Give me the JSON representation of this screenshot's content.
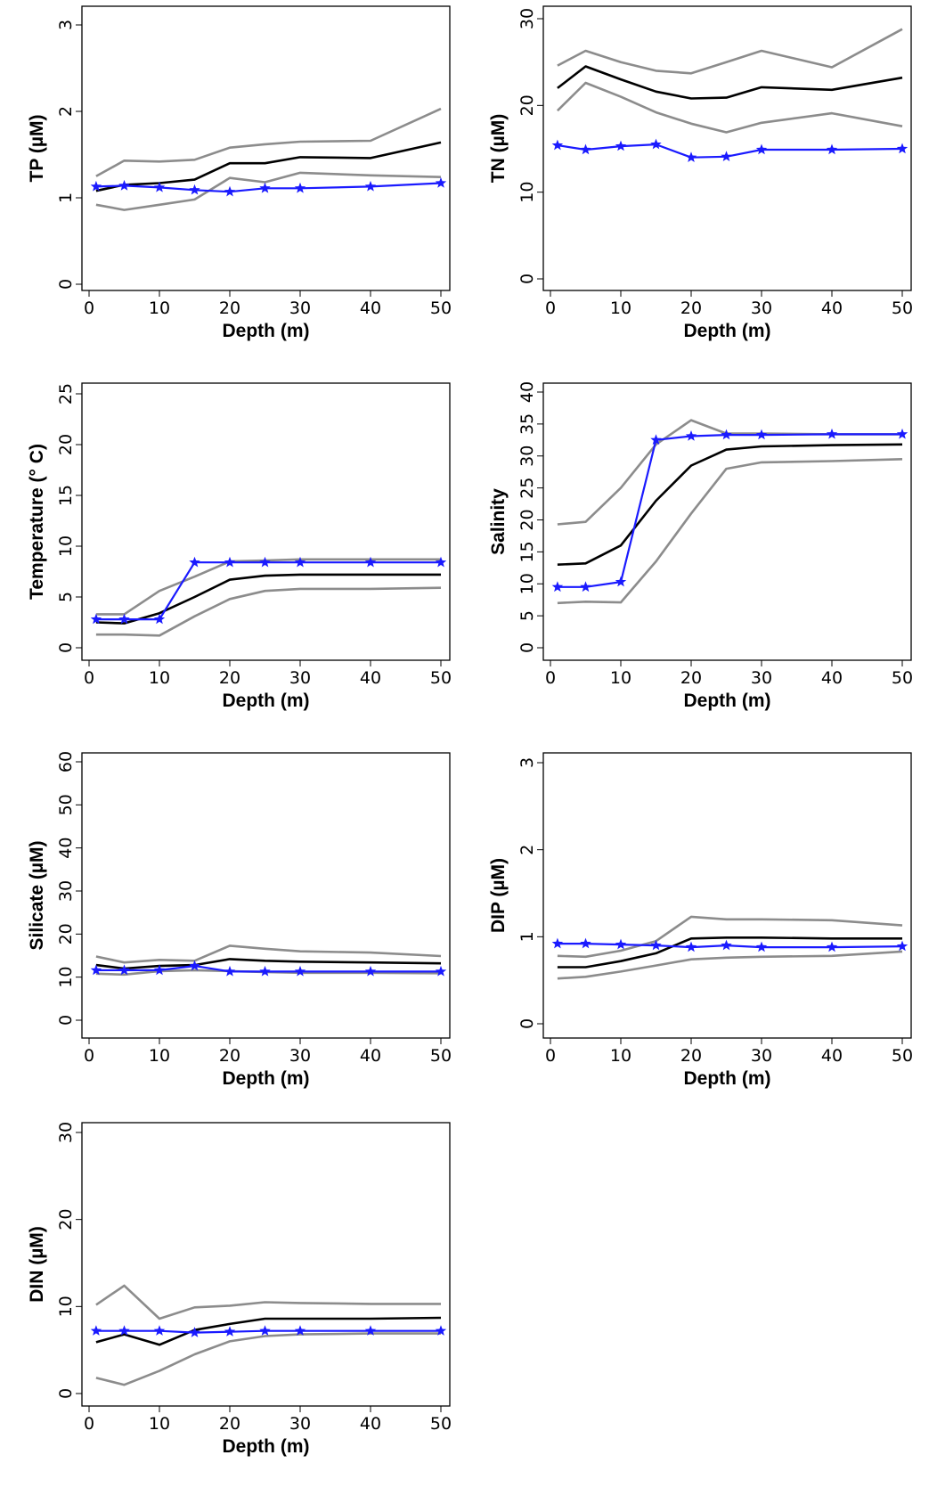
{
  "colors": {
    "mean": "#000000",
    "bounds": "#8c8c8c",
    "observed": "#1a1aff"
  },
  "chart_data": [
    {
      "type": "line",
      "xlabel": "Depth (m)",
      "ylabel": "TP (µM)",
      "xlim": [
        0,
        50
      ],
      "ylim": [
        0,
        3
      ],
      "xticks": [
        0,
        10,
        20,
        30,
        40,
        50
      ],
      "yticks": [
        0,
        1,
        2,
        3
      ],
      "x": [
        1,
        5,
        10,
        15,
        20,
        25,
        30,
        40,
        50
      ],
      "series": [
        {
          "role": "upper",
          "values": [
            1.25,
            1.43,
            1.42,
            1.44,
            1.58,
            1.62,
            1.65,
            1.66,
            2.03
          ]
        },
        {
          "role": "mean",
          "values": [
            1.08,
            1.15,
            1.17,
            1.21,
            1.4,
            1.4,
            1.47,
            1.46,
            1.64
          ]
        },
        {
          "role": "lower",
          "values": [
            0.92,
            0.86,
            0.92,
            0.98,
            1.23,
            1.18,
            1.29,
            1.26,
            1.24
          ]
        },
        {
          "role": "observed",
          "values": [
            1.13,
            1.14,
            1.12,
            1.09,
            1.07,
            1.11,
            1.11,
            1.13,
            1.17
          ]
        }
      ]
    },
    {
      "type": "line",
      "xlabel": "Depth (m)",
      "ylabel": "TN (µM)",
      "xlim": [
        0,
        50
      ],
      "ylim": [
        0,
        30
      ],
      "xticks": [
        0,
        10,
        20,
        30,
        40,
        50
      ],
      "yticks": [
        0,
        10,
        20,
        30
      ],
      "x": [
        1,
        5,
        10,
        15,
        20,
        25,
        30,
        40,
        50
      ],
      "series": [
        {
          "role": "upper",
          "values": [
            24.6,
            26.3,
            25.0,
            24.0,
            23.7,
            25.0,
            26.3,
            24.4,
            28.8
          ]
        },
        {
          "role": "mean",
          "values": [
            22.0,
            24.5,
            23.0,
            21.6,
            20.8,
            20.9,
            22.1,
            21.8,
            23.2
          ]
        },
        {
          "role": "lower",
          "values": [
            19.4,
            22.6,
            21.0,
            19.2,
            17.9,
            16.9,
            18.0,
            19.1,
            17.6
          ]
        },
        {
          "role": "observed",
          "values": [
            15.4,
            14.9,
            15.3,
            15.5,
            14.0,
            14.1,
            14.9,
            14.9,
            15.0
          ]
        }
      ]
    },
    {
      "type": "line",
      "xlabel": "Depth (m)",
      "ylabel": "Temperature (° C)",
      "xlim": [
        0,
        50
      ],
      "ylim": [
        0,
        25
      ],
      "xticks": [
        0,
        10,
        20,
        30,
        40,
        50
      ],
      "yticks": [
        0,
        5,
        10,
        15,
        20,
        25
      ],
      "x": [
        1,
        5,
        10,
        15,
        20,
        25,
        30,
        40,
        50
      ],
      "series": [
        {
          "role": "upper",
          "values": [
            3.3,
            3.3,
            5.6,
            7.0,
            8.5,
            8.6,
            8.7,
            8.7,
            8.7
          ]
        },
        {
          "role": "mean",
          "values": [
            2.5,
            2.4,
            3.4,
            5.0,
            6.7,
            7.1,
            7.2,
            7.2,
            7.2
          ]
        },
        {
          "role": "lower",
          "values": [
            1.3,
            1.3,
            1.2,
            3.1,
            4.8,
            5.6,
            5.8,
            5.8,
            5.9
          ]
        },
        {
          "role": "observed",
          "values": [
            2.8,
            2.8,
            2.8,
            8.4,
            8.4,
            8.4,
            8.4,
            8.4,
            8.4
          ]
        }
      ]
    },
    {
      "type": "line",
      "xlabel": "Depth (m)",
      "ylabel": "Salinity",
      "xlim": [
        0,
        50
      ],
      "ylim": [
        0,
        40
      ],
      "xticks": [
        0,
        10,
        20,
        30,
        40,
        50
      ],
      "yticks": [
        0,
        5,
        10,
        15,
        20,
        25,
        30,
        35,
        40
      ],
      "x": [
        1,
        5,
        10,
        15,
        20,
        25,
        30,
        40,
        50
      ],
      "series": [
        {
          "role": "upper",
          "values": [
            19.3,
            19.7,
            25.0,
            31.8,
            35.6,
            33.5,
            33.5,
            33.4,
            33.4
          ]
        },
        {
          "role": "mean",
          "values": [
            13.0,
            13.2,
            16.0,
            23.0,
            28.5,
            31.0,
            31.5,
            31.7,
            31.8
          ]
        },
        {
          "role": "lower",
          "values": [
            7.0,
            7.2,
            7.1,
            13.5,
            21.0,
            28.0,
            29.0,
            29.2,
            29.5
          ]
        },
        {
          "role": "observed",
          "values": [
            9.5,
            9.5,
            10.3,
            32.5,
            33.1,
            33.3,
            33.3,
            33.4,
            33.4
          ]
        }
      ]
    },
    {
      "type": "line",
      "xlabel": "Depth (m)",
      "ylabel": "Silicate (µM)",
      "xlim": [
        0,
        50
      ],
      "ylim": [
        0,
        60
      ],
      "xticks": [
        0,
        10,
        20,
        30,
        40,
        50
      ],
      "yticks": [
        0,
        10,
        20,
        30,
        40,
        50,
        60
      ],
      "x": [
        1,
        5,
        10,
        15,
        20,
        25,
        30,
        40,
        50
      ],
      "series": [
        {
          "role": "upper",
          "values": [
            14.8,
            13.4,
            14.0,
            13.8,
            17.3,
            16.6,
            16.0,
            15.7,
            14.9
          ]
        },
        {
          "role": "mean",
          "values": [
            12.8,
            12.0,
            12.6,
            12.8,
            14.2,
            13.8,
            13.6,
            13.4,
            13.2
          ]
        },
        {
          "role": "lower",
          "values": [
            10.8,
            10.6,
            11.4,
            11.6,
            11.4,
            11.2,
            11.0,
            11.0,
            10.9
          ]
        },
        {
          "role": "observed",
          "values": [
            11.6,
            11.6,
            11.6,
            12.6,
            11.3,
            11.3,
            11.3,
            11.3,
            11.3
          ]
        }
      ]
    },
    {
      "type": "line",
      "xlabel": "Depth (m)",
      "ylabel": "DIP (µM)",
      "xlim": [
        0,
        50
      ],
      "ylim": [
        0,
        3
      ],
      "xticks": [
        0,
        10,
        20,
        30,
        40,
        50
      ],
      "yticks": [
        0,
        1,
        2,
        3
      ],
      "x": [
        1,
        5,
        10,
        15,
        20,
        25,
        30,
        40,
        50
      ],
      "series": [
        {
          "role": "upper",
          "values": [
            0.78,
            0.77,
            0.84,
            0.95,
            1.23,
            1.2,
            1.2,
            1.19,
            1.13
          ]
        },
        {
          "role": "mean",
          "values": [
            0.65,
            0.65,
            0.72,
            0.81,
            0.98,
            0.99,
            0.99,
            0.98,
            0.98
          ]
        },
        {
          "role": "lower",
          "values": [
            0.52,
            0.54,
            0.6,
            0.67,
            0.74,
            0.76,
            0.77,
            0.78,
            0.83
          ]
        },
        {
          "role": "observed",
          "values": [
            0.92,
            0.92,
            0.91,
            0.9,
            0.88,
            0.9,
            0.88,
            0.88,
            0.89
          ]
        }
      ]
    },
    {
      "type": "line",
      "xlabel": "Depth (m)",
      "ylabel": "DIN (µM)",
      "xlim": [
        0,
        50
      ],
      "ylim": [
        0,
        30
      ],
      "xticks": [
        0,
        10,
        20,
        30,
        40,
        50
      ],
      "yticks": [
        0,
        10,
        20,
        30
      ],
      "x": [
        1,
        5,
        10,
        15,
        20,
        25,
        30,
        40,
        50
      ],
      "series": [
        {
          "role": "upper",
          "values": [
            10.2,
            12.4,
            8.6,
            9.9,
            10.1,
            10.5,
            10.4,
            10.3,
            10.3
          ]
        },
        {
          "role": "mean",
          "values": [
            5.9,
            6.8,
            5.6,
            7.3,
            8.0,
            8.6,
            8.6,
            8.6,
            8.7
          ]
        },
        {
          "role": "lower",
          "values": [
            1.8,
            1.0,
            2.6,
            4.5,
            6.0,
            6.6,
            6.8,
            6.9,
            6.9
          ]
        },
        {
          "role": "observed",
          "values": [
            7.2,
            7.2,
            7.2,
            7.0,
            7.1,
            7.2,
            7.2,
            7.2,
            7.2
          ]
        }
      ]
    }
  ]
}
